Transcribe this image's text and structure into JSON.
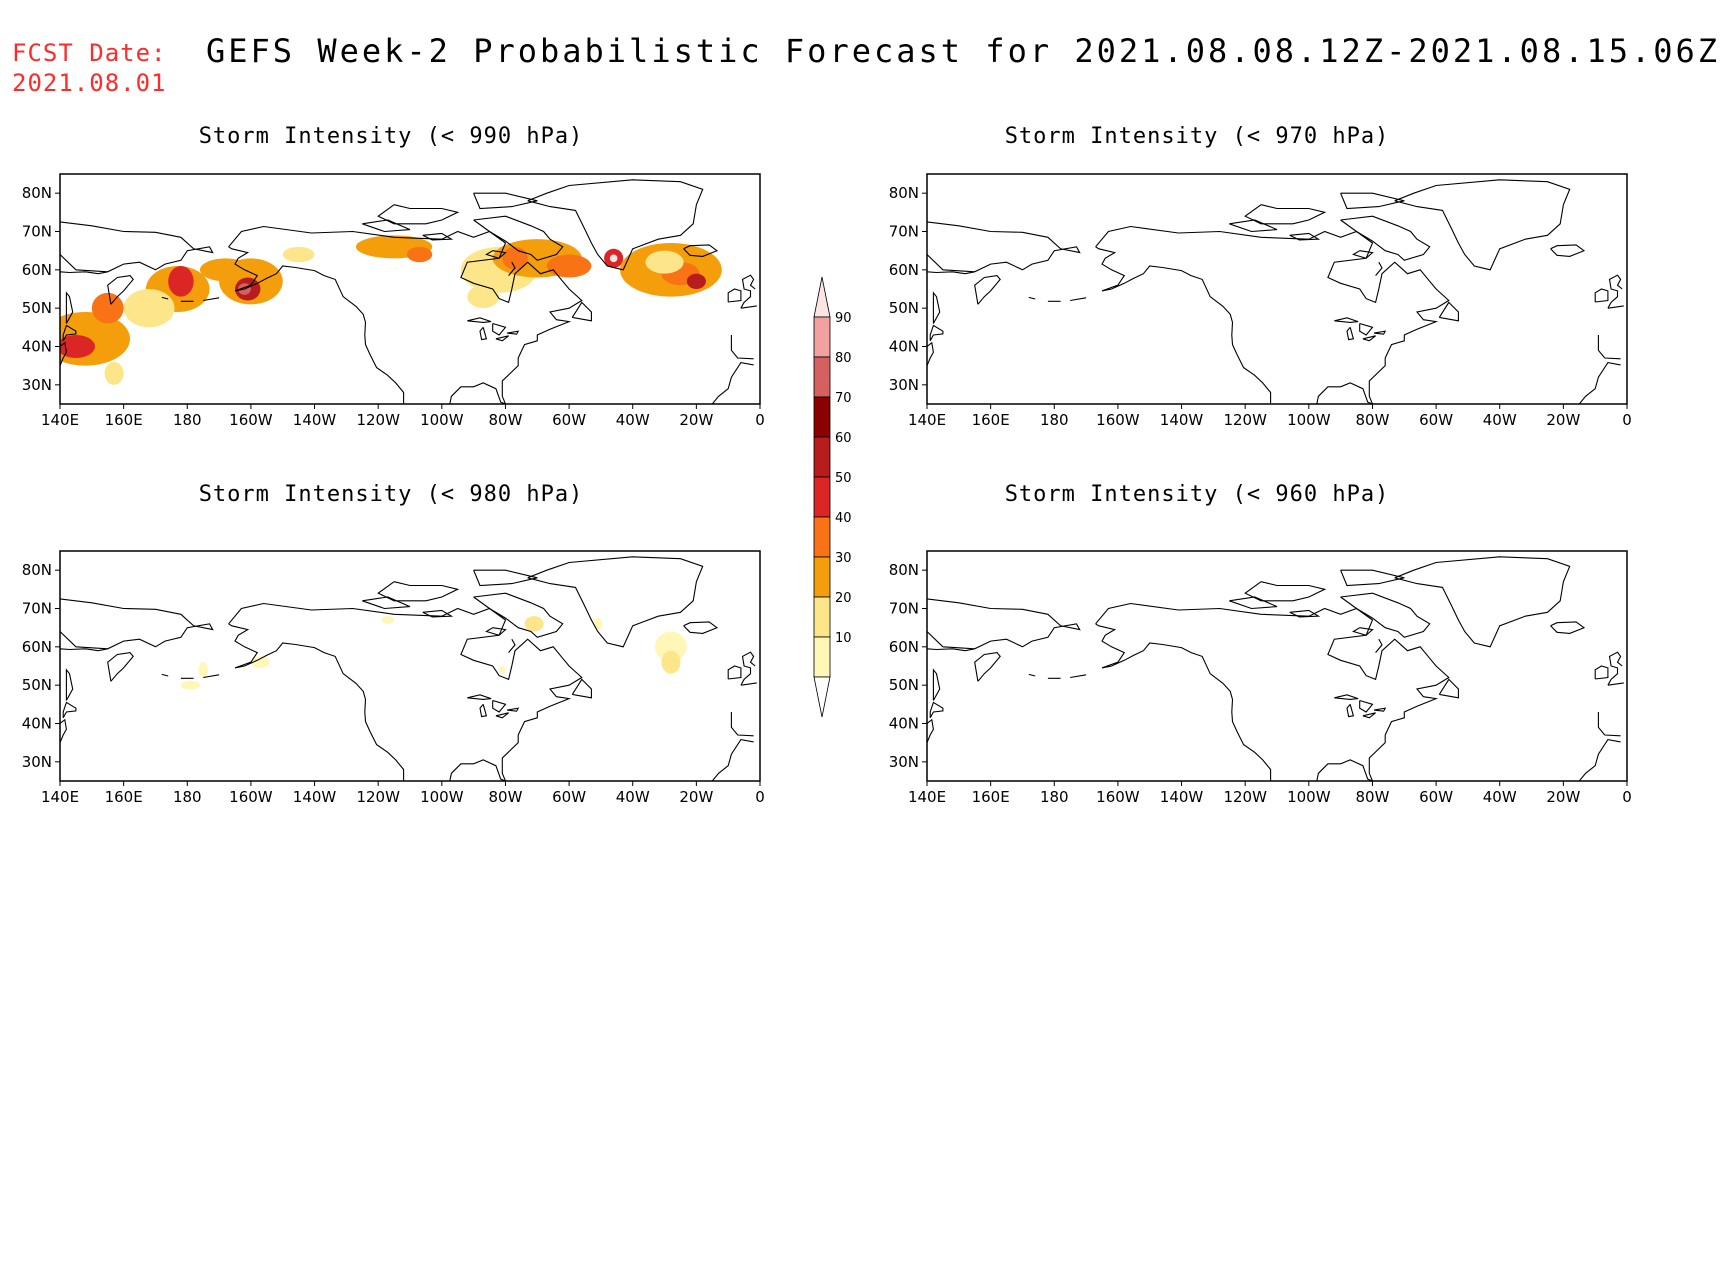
{
  "header": {
    "fcst_label": "FCST Date:",
    "fcst_date": "2021.08.01",
    "title": "GEFS Week-2 Probabilistic Forecast for 2021.08.08.12Z-2021.08.15.06Z"
  },
  "lon_labels": [
    "140E",
    "160E",
    "180",
    "160W",
    "140W",
    "120W",
    "100W",
    "80W",
    "60W",
    "40W",
    "20W",
    "0"
  ],
  "lat_labels": [
    "80N",
    "70N",
    "60N",
    "50N",
    "40N",
    "30N"
  ],
  "colorbar": {
    "levels": [
      "10",
      "20",
      "30",
      "40",
      "50",
      "60",
      "70",
      "80",
      "90"
    ],
    "colors": [
      "#fff7b8",
      "#fde68a",
      "#f59e0b",
      "#f97316",
      "#dc2626",
      "#b91c1c",
      "#8b0000",
      "#d65f5f",
      "#f2a0a0",
      "#fde4e4"
    ]
  },
  "panels": [
    {
      "title": "Storm Intensity (< 990 hPa)",
      "blobs": [
        {
          "lon": 148,
          "lat": 42,
          "rx": 14,
          "ry": 7,
          "cat": 2
        },
        {
          "lon": 145,
          "lat": 40,
          "rx": 6,
          "ry": 3,
          "cat": 4
        },
        {
          "lon": 155,
          "lat": 50,
          "rx": 5,
          "ry": 4,
          "cat": 3
        },
        {
          "lon": 157,
          "lat": 33,
          "rx": 3,
          "ry": 3,
          "cat": 1
        },
        {
          "lon": 177,
          "lat": 55,
          "rx": 10,
          "ry": 6,
          "cat": 2
        },
        {
          "lon": 178,
          "lat": 57,
          "rx": 4,
          "ry": 4,
          "cat": 4
        },
        {
          "lon": 168,
          "lat": 50,
          "rx": 8,
          "ry": 5,
          "cat": 1
        },
        {
          "lon": -160,
          "lat": 57,
          "rx": 10,
          "ry": 6,
          "cat": 2
        },
        {
          "lon": -161,
          "lat": 55,
          "rx": 4,
          "ry": 3,
          "cat": 5
        },
        {
          "lon": -162,
          "lat": 55,
          "rx": 2,
          "ry": 1.5,
          "cat": 7
        },
        {
          "lon": -168,
          "lat": 60,
          "rx": 8,
          "ry": 3,
          "cat": 2
        },
        {
          "lon": -145,
          "lat": 64,
          "rx": 5,
          "ry": 2,
          "cat": 1
        },
        {
          "lon": -115,
          "lat": 66,
          "rx": 12,
          "ry": 3,
          "cat": 2
        },
        {
          "lon": -107,
          "lat": 64,
          "rx": 4,
          "ry": 2,
          "cat": 3
        },
        {
          "lon": -82,
          "lat": 60,
          "rx": 12,
          "ry": 6,
          "cat": 1
        },
        {
          "lon": -70,
          "lat": 63,
          "rx": 14,
          "ry": 5,
          "cat": 2
        },
        {
          "lon": -77,
          "lat": 63,
          "rx": 4,
          "ry": 3,
          "cat": 3
        },
        {
          "lon": -60,
          "lat": 61,
          "rx": 7,
          "ry": 3,
          "cat": 3
        },
        {
          "lon": -46,
          "lat": 63,
          "rx": 3,
          "ry": 2.5,
          "cat": 4
        },
        {
          "lon": -46,
          "lat": 63,
          "rx": 1.2,
          "ry": 1,
          "cat": 9
        },
        {
          "lon": -28,
          "lat": 60,
          "rx": 16,
          "ry": 7,
          "cat": 2
        },
        {
          "lon": -25,
          "lat": 59,
          "rx": 6,
          "ry": 3,
          "cat": 3
        },
        {
          "lon": -20,
          "lat": 57,
          "rx": 3,
          "ry": 2,
          "cat": 5
        },
        {
          "lon": -30,
          "lat": 62,
          "rx": 6,
          "ry": 3,
          "cat": 1
        },
        {
          "lon": -87,
          "lat": 53,
          "rx": 5,
          "ry": 3,
          "cat": 1
        }
      ]
    },
    {
      "title": "Storm Intensity (< 970 hPa)",
      "blobs": []
    },
    {
      "title": "Storm Intensity (< 980 hPa)",
      "blobs": [
        {
          "lon": -28,
          "lat": 60,
          "rx": 5,
          "ry": 4,
          "cat": 0
        },
        {
          "lon": -28,
          "lat": 56,
          "rx": 3,
          "ry": 3,
          "cat": 1
        },
        {
          "lon": -71,
          "lat": 66,
          "rx": 3,
          "ry": 2,
          "cat": 1
        },
        {
          "lon": -51,
          "lat": 66,
          "rx": 1.5,
          "ry": 1.5,
          "cat": 0
        },
        {
          "lon": -117,
          "lat": 67,
          "rx": 2,
          "ry": 1,
          "cat": 0
        },
        {
          "lon": -157,
          "lat": 56,
          "rx": 3,
          "ry": 1.5,
          "cat": 0
        },
        {
          "lon": -179,
          "lat": 50,
          "rx": 3,
          "ry": 1.2,
          "cat": 0
        },
        {
          "lon": -175,
          "lat": 54,
          "rx": 1.5,
          "ry": 2,
          "cat": 0
        },
        {
          "lon": -81,
          "lat": 54,
          "rx": 1,
          "ry": 1,
          "cat": 0
        }
      ]
    },
    {
      "title": "Storm Intensity (< 960 hPa)",
      "blobs": []
    }
  ]
}
